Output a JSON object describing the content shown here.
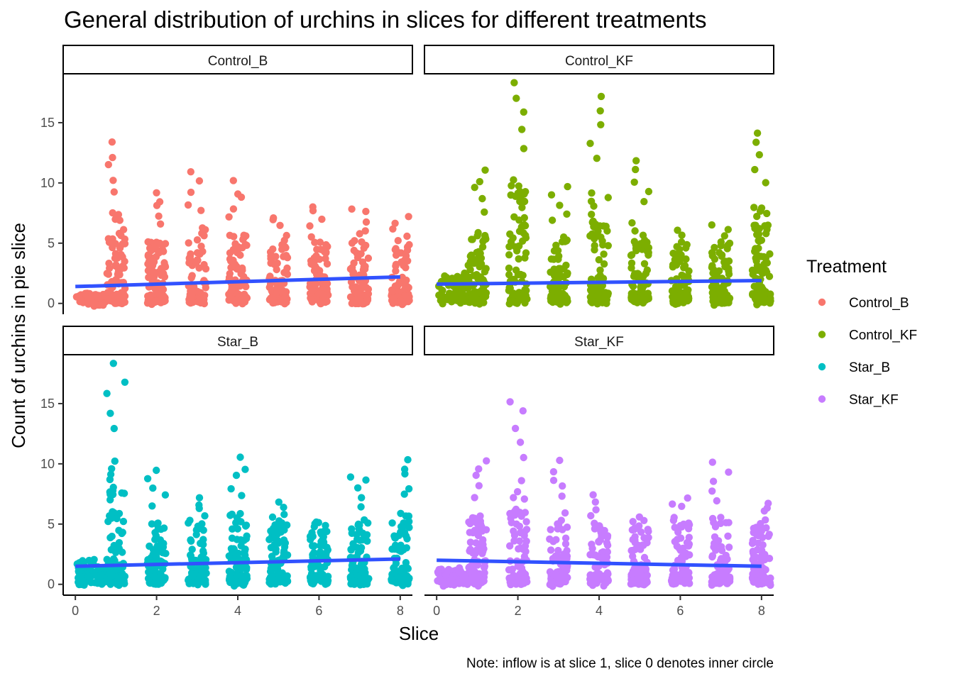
{
  "chart_data": {
    "type": "scatter",
    "title": "General distribution of urchins in slices for different treatments",
    "xlabel": "Slice",
    "ylabel": "Count of urchins in pie slice",
    "caption": "Note: inflow is at slice 1, slice 0 denotes inner circle",
    "xlim": [
      -0.3,
      8.3
    ],
    "ylim": [
      -0.9,
      19.0
    ],
    "x_ticks": [
      0,
      2,
      4,
      6,
      8
    ],
    "y_ticks": [
      0,
      5,
      10,
      15
    ],
    "grid": false,
    "legend": {
      "title": "Treatment",
      "position": "right",
      "entries": [
        "Control_B",
        "Control_KF",
        "Star_B",
        "Star_KF"
      ]
    },
    "trend_color": "#3152ff",
    "panels": [
      {
        "name": "Control_B",
        "color": "#f8766d",
        "trend": {
          "x": [
            0,
            8
          ],
          "y": [
            1.4,
            2.2
          ]
        },
        "max_by_slice": [
          0.8,
          13.2,
          9.3,
          10.7,
          10.0,
          7.3,
          8.2,
          8.0,
          7.2
        ]
      },
      {
        "name": "Control_KF",
        "color": "#7cae00",
        "trend": {
          "x": [
            0,
            8
          ],
          "y": [
            1.6,
            1.9
          ]
        },
        "max_by_slice": [
          2.4,
          11.0,
          18.3,
          9.7,
          17.1,
          11.8,
          6.0,
          6.7,
          14.2
        ]
      },
      {
        "name": "Star_B",
        "color": "#00bfc4",
        "trend": {
          "x": [
            0,
            8
          ],
          "y": [
            1.5,
            2.1
          ]
        },
        "max_by_slice": [
          1.9,
          18.2,
          9.3,
          7.1,
          10.4,
          7.0,
          4.9,
          9.1,
          10.4
        ]
      },
      {
        "name": "Star_KF",
        "color": "#c77cff",
        "trend": {
          "x": [
            0,
            8
          ],
          "y": [
            2.0,
            1.5
          ]
        },
        "max_by_slice": [
          1.3,
          10.4,
          15.3,
          10.2,
          7.4,
          5.4,
          7.3,
          10.1,
          6.9
        ]
      }
    ]
  }
}
